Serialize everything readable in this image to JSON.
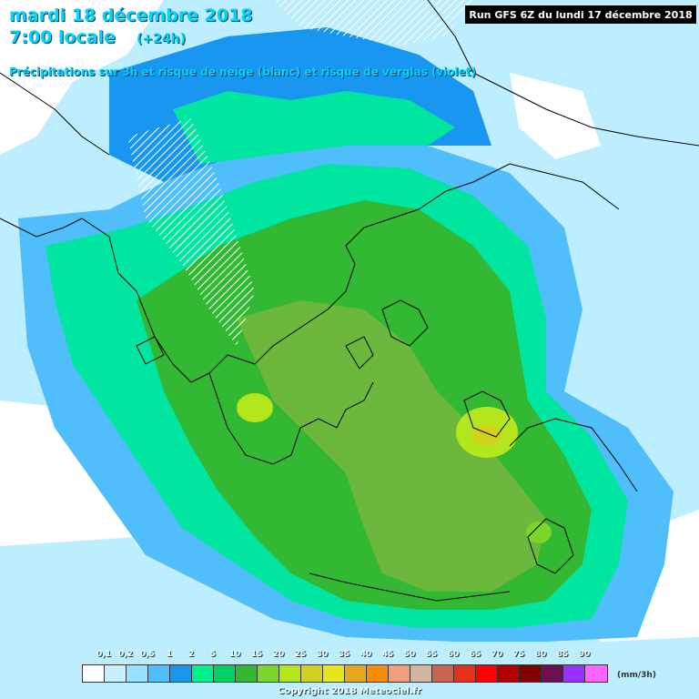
{
  "header": {
    "date": "mardi 18 décembre 2018",
    "time": "7:00 locale",
    "lead": "(+24h)",
    "subtitle": "Précipitations sur 3h et risque de neige (blanc) et risque de verglas (violet)"
  },
  "run_info": "Run GFS 6Z du lundi 17 décembre 2018",
  "legend": {
    "labels": [
      "0,1",
      "0,2",
      "0,5",
      "1",
      "2",
      "5",
      "10",
      "15",
      "20",
      "25",
      "30",
      "35",
      "40",
      "45",
      "50",
      "55",
      "60",
      "65",
      "70",
      "75",
      "80",
      "85",
      "90"
    ],
    "colors": [
      "#ffffff",
      "#c8f0ff",
      "#96e1ff",
      "#4fbefb",
      "#1896f0",
      "#00f08c",
      "#00d266",
      "#33b833",
      "#7ad62a",
      "#b4e61e",
      "#d2d21e",
      "#e6e61e",
      "#e6a81e",
      "#f58c0a",
      "#f0a078",
      "#d2b4a0",
      "#c86450",
      "#e63219",
      "#ff0000",
      "#b40000",
      "#820000",
      "#6e1050",
      "#9632ff",
      "#ff64ff"
    ],
    "unit": "(mm/3h)"
  },
  "copyright": "Copyright 2018 Meteociel.fr",
  "colors": {
    "title": "#00d4ff",
    "light_blue": "#9fe6ff",
    "medium_blue": "#1e9cf0",
    "cyan_green": "#00e6a0",
    "green": "#3cc84a",
    "olive_green": "#6cb83c",
    "yellow_green": "#c8d020"
  }
}
